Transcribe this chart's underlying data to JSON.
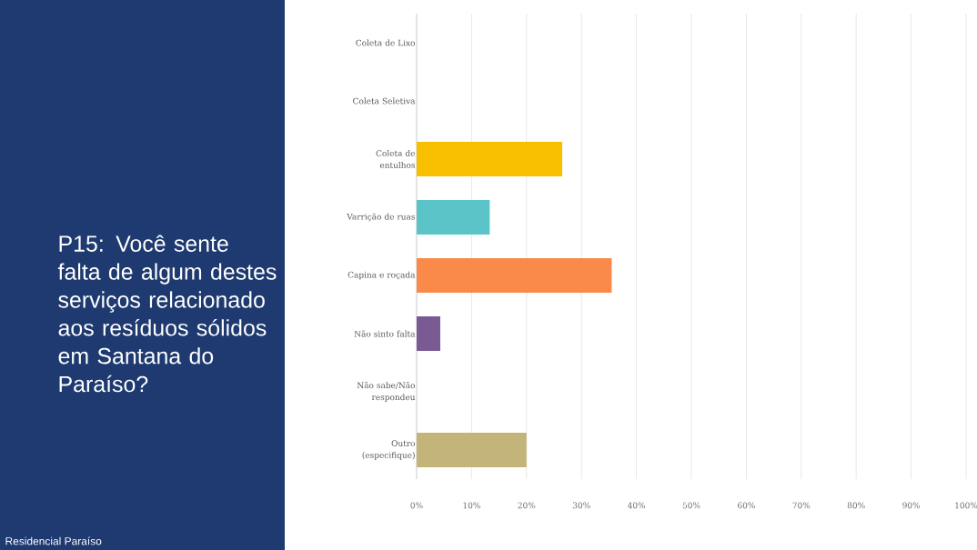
{
  "chart_data": {
    "type": "bar",
    "orientation": "horizontal",
    "title": "P15: Você sente falta de algum destes serviços relacionado aos resíduos sólidos em Santana do Paraíso?",
    "categories": [
      "Coleta de Lixo",
      "Coleta Seletiva",
      "Coleta de entulhos",
      "Varrição de ruas",
      "Capina e roçada",
      "Não sinto falta",
      "Não sabe/Não respondeu",
      "Outro (especifique)"
    ],
    "values": [
      0,
      0,
      26.5,
      13.3,
      35.5,
      4.3,
      0,
      20
    ],
    "colors": [
      "#2ea1d6",
      "#9bc850",
      "#f8bf00",
      "#5bc4c8",
      "#f98a4a",
      "#7a5a93",
      "#e86e8e",
      "#c3b57a"
    ],
    "xlim": [
      0,
      100
    ],
    "xticks": [
      {
        "value": 0,
        "label": "0%"
      },
      {
        "value": 10,
        "label": "10%"
      },
      {
        "value": 20,
        "label": "20%"
      },
      {
        "value": 30,
        "label": "30%"
      },
      {
        "value": 40,
        "label": "40%"
      },
      {
        "value": 50,
        "label": "50%"
      },
      {
        "value": 60,
        "label": "60%"
      },
      {
        "value": 70,
        "label": "70%"
      },
      {
        "value": 80,
        "label": "80%"
      },
      {
        "value": 90,
        "label": "90%"
      },
      {
        "value": 100,
        "label": "100%"
      }
    ],
    "grid": "x",
    "annotations": [
      "Residencial Paraíso"
    ]
  }
}
